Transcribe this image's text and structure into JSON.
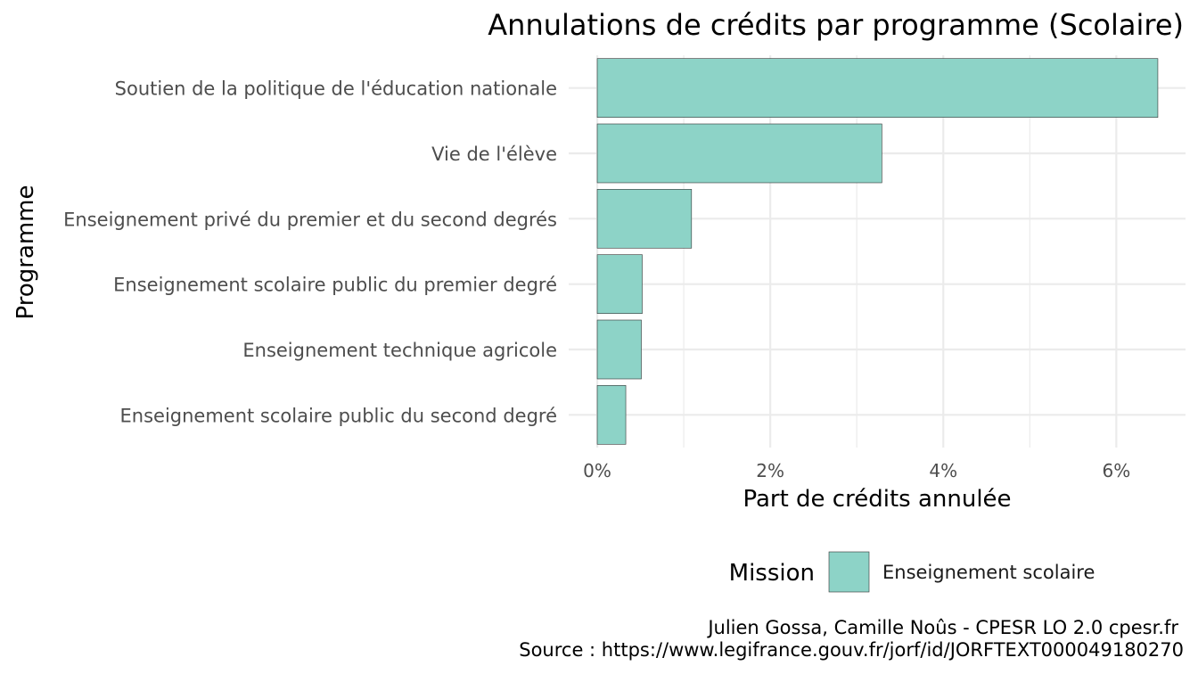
{
  "chart_data": {
    "type": "bar",
    "orientation": "horizontal",
    "title": "Annulations de crédits par programme (Scolaire)",
    "xlabel": "Part de crédits annulée",
    "ylabel": "Programme",
    "categories": [
      "Soutien de la politique de l'éducation nationale",
      "Vie de l'élève",
      "Enseignement privé du premier et du second degrés",
      "Enseignement scolaire public du premier degré",
      "Enseignement technique agricole",
      "Enseignement scolaire public du second degré"
    ],
    "series": [
      {
        "name": "Enseignement scolaire",
        "values": [
          6.48,
          3.29,
          1.09,
          0.52,
          0.51,
          0.33
        ],
        "color": "#8dd3c7"
      }
    ],
    "xlim": [
      -0.33,
      6.8
    ],
    "xticks": [
      0,
      2,
      4,
      6
    ],
    "xtick_labels": [
      "0%",
      "2%",
      "4%",
      "6%"
    ],
    "grid": true,
    "legend": {
      "title": "Mission",
      "position": "bottom"
    },
    "caption": [
      "Julien Gossa, Camille Noûs - CPESR LO 2.0 cpesr.fr",
      "Source : https://www.legifrance.gouv.fr/jorf/id/JORFTEXT000049180270"
    ]
  }
}
